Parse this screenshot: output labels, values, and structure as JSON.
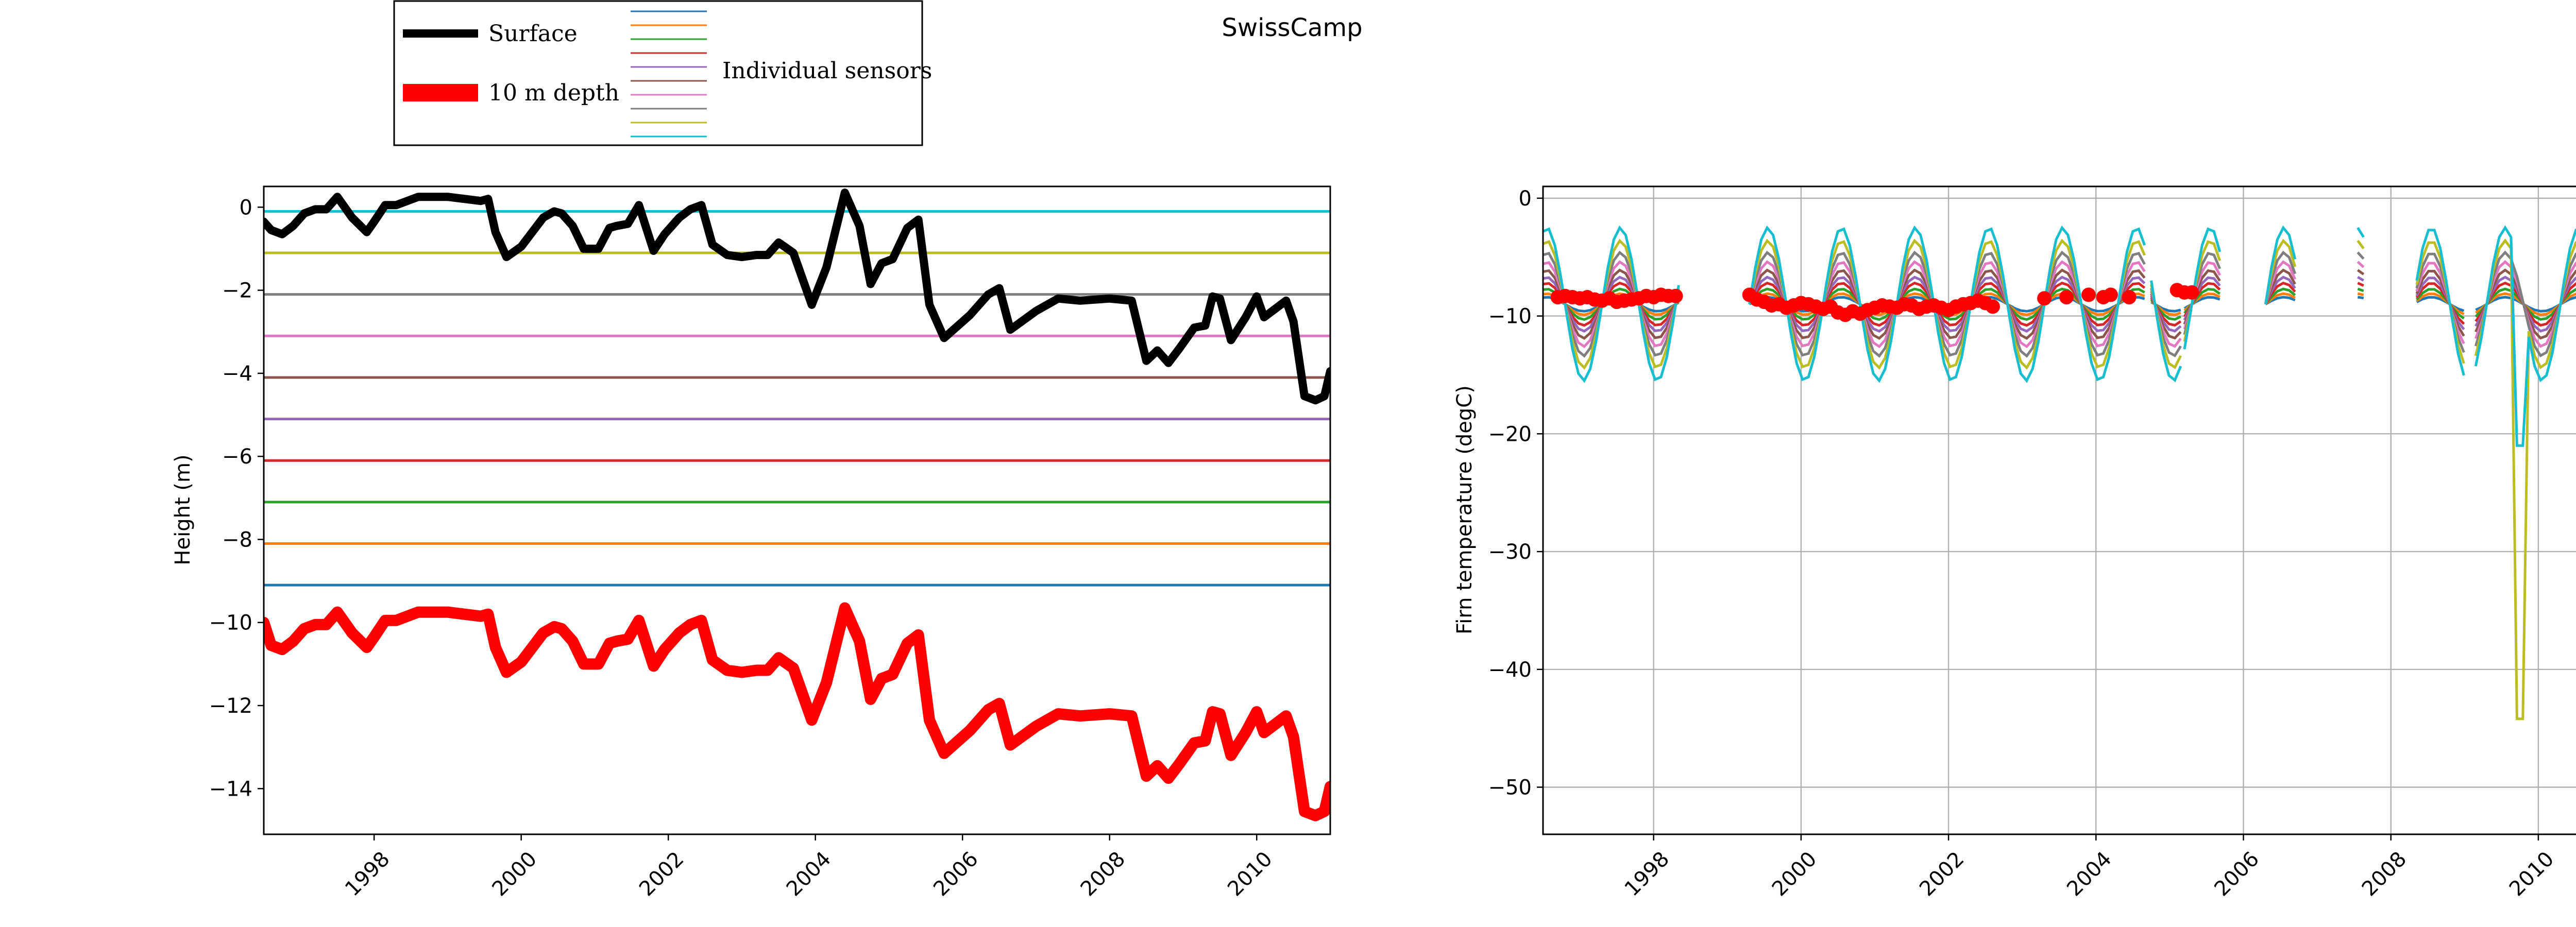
{
  "suptitle": "SwissCamp",
  "legend": {
    "entries": [
      {
        "label": "Surface",
        "color": "#000000"
      },
      {
        "label": "10 m depth",
        "color": "#ff0000"
      },
      {
        "label": "Individual sensors",
        "colors": [
          "#1f77b4",
          "#ff7f0e",
          "#2ca02c",
          "#d62728",
          "#9467bd",
          "#8c564b",
          "#e377c2",
          "#7f7f7f",
          "#bcbd22",
          "#17becf"
        ]
      }
    ]
  },
  "chart_data": [
    {
      "type": "line",
      "ylabel": "Height (m)",
      "xlabel": "",
      "xlim": [
        1996.5,
        2011.0
      ],
      "ylim": [
        -15.1,
        0.5
      ],
      "xticks": [
        1998,
        2000,
        2002,
        2004,
        2006,
        2008,
        2010
      ],
      "yticks": [
        0,
        -2,
        -4,
        -6,
        -8,
        -10,
        -12,
        -14
      ],
      "grid": false,
      "sensor_depths": [
        {
          "y": -0.1,
          "color": "#17becf"
        },
        {
          "y": -1.1,
          "color": "#bcbd22"
        },
        {
          "y": -2.1,
          "color": "#7f7f7f"
        },
        {
          "y": -3.1,
          "color": "#e377c2"
        },
        {
          "y": -4.1,
          "color": "#8c564b"
        },
        {
          "y": -5.1,
          "color": "#9467bd"
        },
        {
          "y": -6.1,
          "color": "#d62728"
        },
        {
          "y": -7.1,
          "color": "#2ca02c"
        },
        {
          "y": -8.1,
          "color": "#ff7f0e"
        },
        {
          "y": -9.1,
          "color": "#1f77b4"
        }
      ],
      "series": [
        {
          "name": "Surface",
          "color": "#000000",
          "x": [
            1996.5,
            1996.6,
            1996.75,
            1996.9,
            1997.05,
            1997.2,
            1997.35,
            1997.5,
            1997.7,
            1997.9,
            1998.0,
            1998.15,
            1998.3,
            1998.6,
            1999.0,
            1999.45,
            1999.55,
            1999.65,
            1999.8,
            2000.0,
            2000.15,
            2000.3,
            2000.45,
            2000.55,
            2000.7,
            2000.85,
            2001.05,
            2001.2,
            2001.3,
            2001.45,
            2001.6,
            2001.8,
            2001.95,
            2002.15,
            2002.3,
            2002.45,
            2002.6,
            2002.8,
            2003.0,
            2003.2,
            2003.35,
            2003.5,
            2003.7,
            2003.95,
            2004.15,
            2004.4,
            2004.6,
            2004.75,
            2004.9,
            2005.05,
            2005.25,
            2005.4,
            2005.55,
            2005.75,
            2006.1,
            2006.35,
            2006.5,
            2006.65,
            2007.0,
            2007.3,
            2007.6,
            2008.0,
            2008.3,
            2008.5,
            2008.65,
            2008.8,
            2008.95,
            2009.15,
            2009.3,
            2009.4,
            2009.5,
            2009.65,
            2009.85,
            2010.0,
            2010.1,
            2010.25,
            2010.4,
            2010.5,
            2010.65,
            2010.8,
            2010.92,
            2011.0
          ],
          "y": [
            -0.35,
            -0.55,
            -0.65,
            -0.45,
            -0.15,
            -0.05,
            -0.05,
            0.25,
            -0.25,
            -0.6,
            -0.35,
            0.05,
            0.05,
            0.25,
            0.25,
            0.15,
            0.2,
            -0.6,
            -1.2,
            -0.95,
            -0.6,
            -0.25,
            -0.1,
            -0.15,
            -0.45,
            -1.0,
            -1.0,
            -0.5,
            -0.45,
            -0.4,
            0.05,
            -1.05,
            -0.65,
            -0.25,
            -0.05,
            0.05,
            -0.9,
            -1.15,
            -1.2,
            -1.15,
            -1.15,
            -0.85,
            -1.1,
            -2.35,
            -1.45,
            0.35,
            -0.45,
            -1.85,
            -1.35,
            -1.25,
            -0.5,
            -0.3,
            -2.35,
            -3.15,
            -2.6,
            -2.1,
            -1.95,
            -2.95,
            -2.5,
            -2.2,
            -2.25,
            -2.2,
            -2.25,
            -3.7,
            -3.45,
            -3.75,
            -3.4,
            -2.9,
            -2.85,
            -2.15,
            -2.2,
            -3.2,
            -2.65,
            -2.15,
            -2.65,
            -2.45,
            -2.25,
            -2.75,
            -4.55,
            -4.65,
            -4.55,
            -3.95
          ]
        },
        {
          "name": "10 m depth",
          "color": "#ff0000",
          "x": [
            1996.5,
            1996.6,
            1996.75,
            1996.9,
            1997.05,
            1997.2,
            1997.35,
            1997.5,
            1997.7,
            1997.9,
            1998.0,
            1998.15,
            1998.3,
            1998.6,
            1999.0,
            1999.45,
            1999.55,
            1999.65,
            1999.8,
            2000.0,
            2000.15,
            2000.3,
            2000.45,
            2000.55,
            2000.7,
            2000.85,
            2001.05,
            2001.2,
            2001.3,
            2001.45,
            2001.6,
            2001.8,
            2001.95,
            2002.15,
            2002.3,
            2002.45,
            2002.6,
            2002.8,
            2003.0,
            2003.2,
            2003.35,
            2003.5,
            2003.7,
            2003.95,
            2004.15,
            2004.4,
            2004.6,
            2004.75,
            2004.9,
            2005.05,
            2005.25,
            2005.4,
            2005.55,
            2005.75,
            2006.1,
            2006.35,
            2006.5,
            2006.65,
            2007.0,
            2007.3,
            2007.6,
            2008.0,
            2008.3,
            2008.5,
            2008.65,
            2008.8,
            2008.95,
            2009.15,
            2009.3,
            2009.4,
            2009.5,
            2009.65,
            2009.85,
            2010.0,
            2010.1,
            2010.25,
            2010.4,
            2010.5,
            2010.65,
            2010.8,
            2010.92,
            2011.0
          ],
          "y": [
            -10.0,
            -10.55,
            -10.65,
            -10.45,
            -10.15,
            -10.05,
            -10.05,
            -9.75,
            -10.25,
            -10.6,
            -10.35,
            -9.95,
            -9.95,
            -9.75,
            -9.75,
            -9.85,
            -9.8,
            -10.6,
            -11.2,
            -10.95,
            -10.6,
            -10.25,
            -10.1,
            -10.15,
            -10.45,
            -11.0,
            -11.0,
            -10.5,
            -10.45,
            -10.4,
            -9.95,
            -11.05,
            -10.65,
            -10.25,
            -10.05,
            -9.95,
            -10.9,
            -11.15,
            -11.2,
            -11.15,
            -11.15,
            -10.85,
            -11.1,
            -12.35,
            -11.45,
            -9.65,
            -10.45,
            -11.85,
            -11.35,
            -11.25,
            -10.5,
            -10.3,
            -12.35,
            -13.15,
            -12.6,
            -12.1,
            -11.95,
            -12.95,
            -12.5,
            -12.2,
            -12.25,
            -12.2,
            -12.25,
            -13.7,
            -13.45,
            -13.75,
            -13.4,
            -12.9,
            -12.85,
            -12.15,
            -12.2,
            -13.2,
            -12.65,
            -12.15,
            -12.65,
            -12.45,
            -12.25,
            -12.75,
            -14.55,
            -14.65,
            -14.55,
            -13.95
          ]
        }
      ]
    },
    {
      "type": "line",
      "ylabel": "Firn temperature (degC)",
      "xlabel": "",
      "xlim": [
        1996.5,
        2011.0
      ],
      "ylim": [
        -54,
        1
      ],
      "xticks": [
        1998,
        2000,
        2002,
        2004,
        2006,
        2008,
        2010
      ],
      "yticks": [
        0,
        -10,
        -20,
        -30,
        -40,
        -50
      ],
      "grid": true,
      "sensor_colors": [
        "#1f77b4",
        "#ff7f0e",
        "#2ca02c",
        "#d62728",
        "#9467bd",
        "#8c564b",
        "#e377c2",
        "#7f7f7f",
        "#bcbd22",
        "#17becf"
      ],
      "sensor_seasonal": {
        "mean": -9.0,
        "amplitude_by_sensor": [
          0.6,
          0.9,
          1.3,
          1.8,
          2.3,
          2.9,
          3.6,
          4.4,
          5.4,
          6.5
        ],
        "segments": [
          [
            1996.5,
            1998.4
          ],
          [
            1999.3,
            2004.7
          ],
          [
            2004.75,
            2005.2
          ],
          [
            2005.2,
            2005.7
          ],
          [
            2006.3,
            2006.7
          ],
          [
            2007.55,
            2007.7
          ],
          [
            2008.35,
            2009.0
          ],
          [
            2009.15,
            2011.0
          ]
        ],
        "anomaly": {
          "x": 2009.72,
          "y": -44.2,
          "y_cyan": -21.0
        }
      },
      "series": [
        {
          "name": "10 m depth",
          "color": "#ff0000",
          "marker": "circle",
          "x": [
            1996.7,
            1996.8,
            1996.9,
            1997.0,
            1997.1,
            1997.2,
            1997.3,
            1997.4,
            1997.5,
            1997.6,
            1997.7,
            1997.8,
            1997.9,
            1998.0,
            1998.1,
            1998.2,
            1998.3,
            1999.3,
            1999.4,
            1999.5,
            1999.6,
            1999.7,
            1999.8,
            1999.9,
            2000.0,
            2000.1,
            2000.2,
            2000.3,
            2000.4,
            2000.5,
            2000.6,
            2000.7,
            2000.8,
            2000.9,
            2001.0,
            2001.1,
            2001.2,
            2001.3,
            2001.4,
            2001.5,
            2001.6,
            2001.7,
            2001.8,
            2001.9,
            2002.0,
            2002.1,
            2002.2,
            2002.3,
            2002.4,
            2002.5,
            2002.6,
            2003.3,
            2003.6,
            2003.9,
            2004.1,
            2004.2,
            2004.45,
            2005.1,
            2005.2,
            2005.3
          ],
          "y": [
            -8.4,
            -8.3,
            -8.4,
            -8.5,
            -8.4,
            -8.6,
            -8.7,
            -8.5,
            -8.8,
            -8.7,
            -8.6,
            -8.5,
            -8.3,
            -8.4,
            -8.2,
            -8.3,
            -8.3,
            -8.2,
            -8.6,
            -8.8,
            -9.1,
            -9.0,
            -9.3,
            -9.1,
            -8.9,
            -9.0,
            -9.2,
            -9.4,
            -9.2,
            -9.7,
            -9.9,
            -9.6,
            -9.8,
            -9.5,
            -9.3,
            -9.1,
            -9.2,
            -9.3,
            -9.0,
            -9.1,
            -9.4,
            -9.2,
            -9.1,
            -9.3,
            -9.5,
            -9.2,
            -9.0,
            -8.9,
            -8.7,
            -8.9,
            -9.2,
            -8.5,
            -8.4,
            -8.2,
            -8.4,
            -8.2,
            -8.4,
            -7.8,
            -8.0,
            -8.0
          ]
        }
      ]
    }
  ]
}
